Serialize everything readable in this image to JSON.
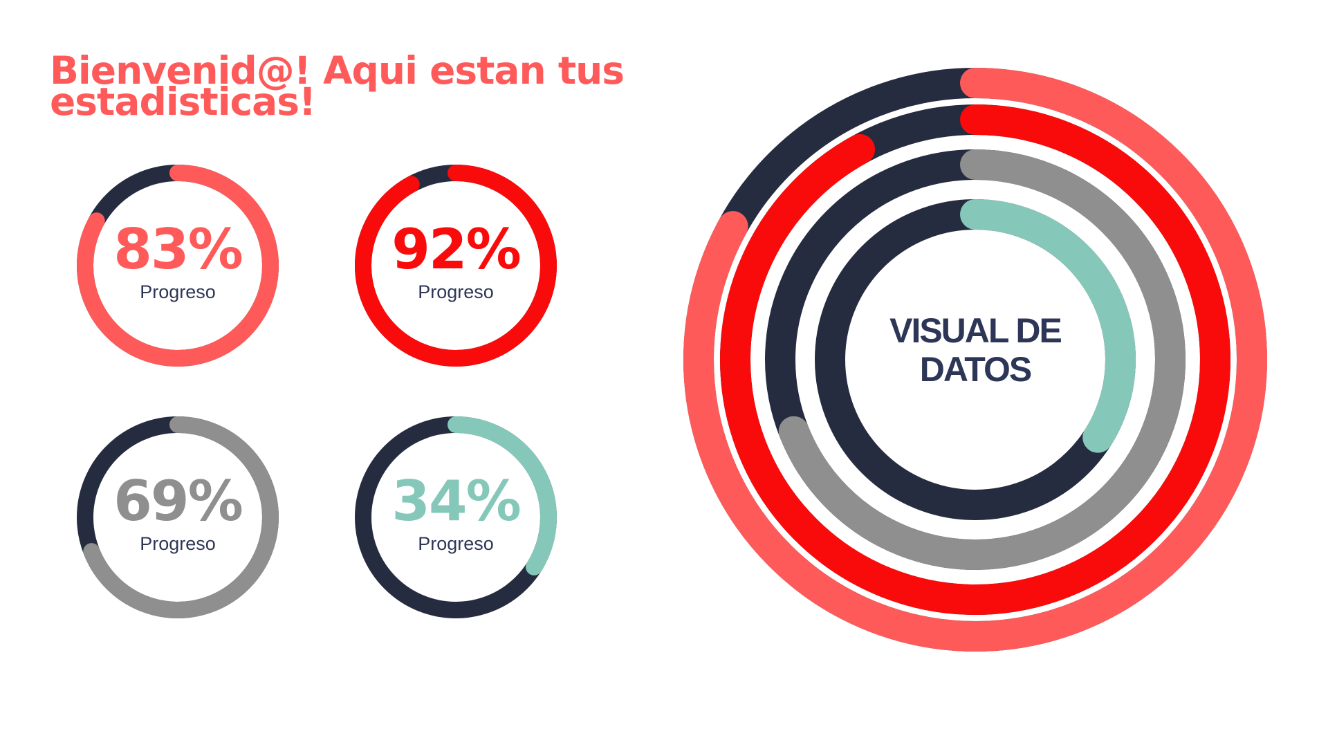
{
  "header": {
    "title": "Bienvenid@! Aqui estan tus estadisticas!"
  },
  "colors": {
    "title": "#ff5a5a",
    "track": "#262c3f",
    "label": "#2d3656",
    "coral": "#ff5a5a",
    "red": "#fa0b0b",
    "gray": "#8f8f8f",
    "teal": "#85c8b9"
  },
  "chart_data": [
    {
      "type": "progress-ring",
      "value": 83,
      "value_label": "83%",
      "caption": "Progreso",
      "color": "#ff5a5a",
      "track_color": "#262c3f"
    },
    {
      "type": "progress-ring",
      "value": 92,
      "value_label": "92%",
      "caption": "Progreso",
      "color": "#fa0b0b",
      "track_color": "#262c3f"
    },
    {
      "type": "progress-ring",
      "value": 69,
      "value_label": "69%",
      "caption": "Progreso",
      "color": "#8f8f8f",
      "track_color": "#262c3f"
    },
    {
      "type": "progress-ring",
      "value": 34,
      "value_label": "34%",
      "caption": "Progreso",
      "color": "#85c8b9",
      "track_color": "#262c3f"
    },
    {
      "type": "radial-bar",
      "title": "VISUAL DE DATOS",
      "title_lines": [
        "VISUAL DE",
        "DATOS"
      ],
      "track_color": "#262c3f",
      "series": [
        {
          "value": 83,
          "color": "#ff5a5a"
        },
        {
          "value": 92,
          "color": "#fa0b0b"
        },
        {
          "value": 69,
          "color": "#8f8f8f"
        },
        {
          "value": 34,
          "color": "#85c8b9"
        }
      ]
    }
  ]
}
